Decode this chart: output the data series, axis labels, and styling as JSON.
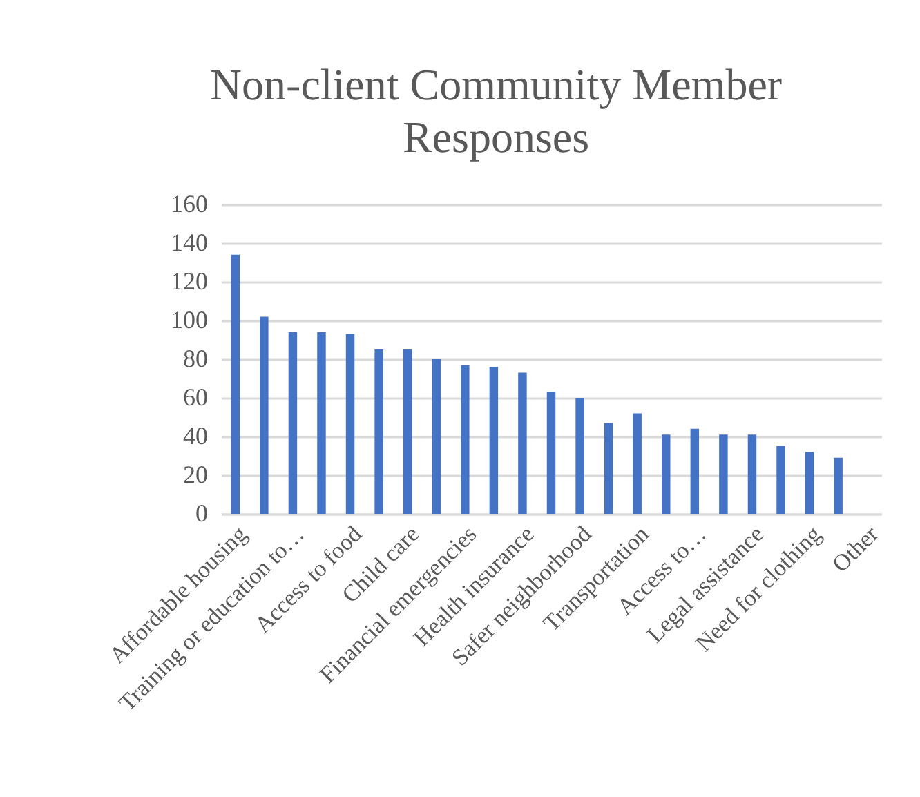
{
  "chart_data": {
    "type": "bar",
    "title": "Non-client Community Member Responses",
    "categories": [
      "Affordable housing",
      null,
      "Training or education to…",
      null,
      "Access to food",
      null,
      "Child care",
      null,
      "Financial emergencies",
      null,
      "Health insurance",
      null,
      "Safer neighborhood",
      null,
      "Transportation",
      null,
      "Access to…",
      null,
      "Legal assistance",
      null,
      "Need for clothing",
      null,
      "Other"
    ],
    "values": [
      134,
      102,
      94,
      94,
      93,
      85,
      85,
      80,
      77,
      76,
      73,
      63,
      60,
      47,
      52,
      41,
      44,
      41,
      41,
      35,
      32,
      29,
      null
    ],
    "color": "#4472c4",
    "ylim": [
      0,
      160
    ],
    "yticks": [
      0,
      20,
      40,
      60,
      80,
      100,
      120,
      140,
      160
    ],
    "grid": "y"
  }
}
